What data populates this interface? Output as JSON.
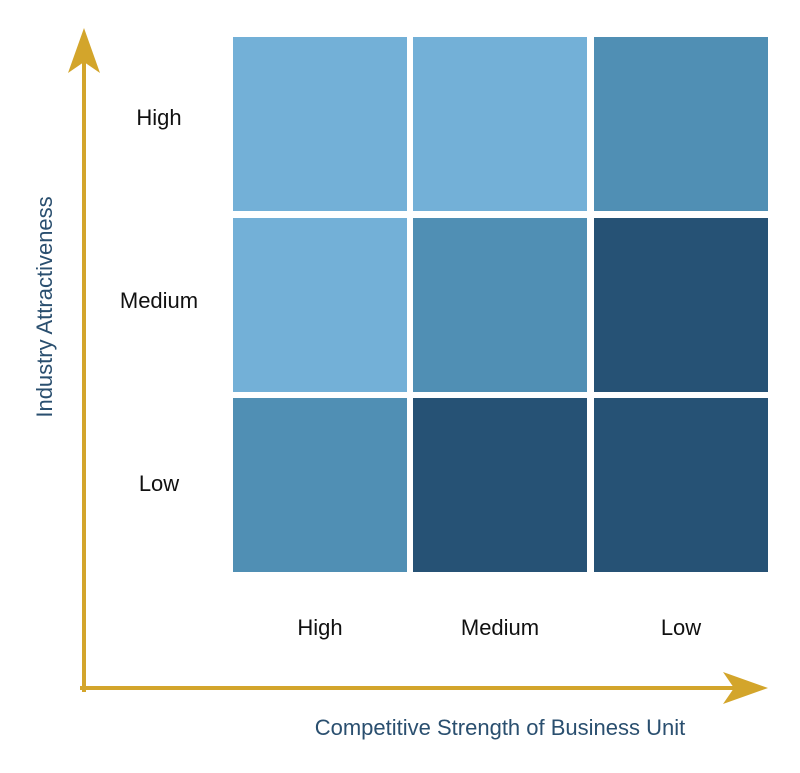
{
  "diagram": {
    "y_axis_title": "Industry Attractiveness",
    "x_axis_title": "Competitive Strength of Business Unit",
    "row_labels": [
      "High",
      "Medium",
      "Low"
    ],
    "column_labels": [
      "High",
      "Medium",
      "Low"
    ],
    "cells": [
      [
        {
          "color": "#73b0d7"
        },
        {
          "color": "#73b0d7"
        },
        {
          "color": "#508fb4"
        }
      ],
      [
        {
          "color": "#73b0d7"
        },
        {
          "color": "#508fb4"
        },
        {
          "color": "#265275"
        }
      ],
      [
        {
          "color": "#508fb4"
        },
        {
          "color": "#265275"
        },
        {
          "color": "#265275"
        }
      ]
    ],
    "colors": {
      "axis": "#d3a52b",
      "axis_title": "#2a4f6f",
      "label": "#111111"
    }
  }
}
